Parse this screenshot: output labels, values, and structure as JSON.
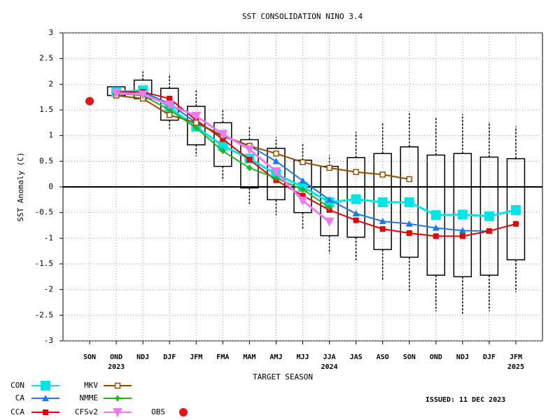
{
  "chart_data": {
    "type": "line",
    "title": "SST CONSOLIDATION NINO 3.4",
    "y_label": "SST Anomaly (C)",
    "x_label": "TARGET SEASON",
    "annotation": "ISSUED: 11 DEC 2023",
    "categories": [
      "SON",
      "OND",
      "NDJ",
      "DJF",
      "JFM",
      "FMA",
      "MAM",
      "AMJ",
      "MJJ",
      "JJA",
      "JAS",
      "ASO",
      "SON",
      "OND",
      "NDJ",
      "DJF",
      "JFM"
    ],
    "year_labels": [
      null,
      "2023",
      null,
      null,
      null,
      null,
      null,
      null,
      null,
      "2024",
      null,
      null,
      null,
      null,
      null,
      null,
      "2025"
    ],
    "ylim": [
      -3,
      3
    ],
    "yticks": [
      3,
      2.5,
      2,
      1.5,
      1,
      0.5,
      0,
      -0.5,
      -1,
      -1.5,
      -2,
      -2.5,
      -3
    ],
    "grid": true,
    "boxes": {
      "low": [
        null,
        1.78,
        1.72,
        1.3,
        0.82,
        0.4,
        -0.02,
        -0.25,
        -0.5,
        -0.95,
        -0.98,
        -1.22,
        -1.37,
        -1.72,
        -1.75,
        -1.72,
        -1.42
      ],
      "high": [
        null,
        1.95,
        2.08,
        1.92,
        1.57,
        1.25,
        0.92,
        0.75,
        0.52,
        0.4,
        0.57,
        0.65,
        0.78,
        0.62,
        0.65,
        0.58,
        0.55
      ],
      "min": [
        null,
        1.78,
        1.72,
        1.1,
        0.6,
        0.12,
        -0.35,
        -0.55,
        -0.82,
        -1.3,
        -1.45,
        -1.82,
        -2.05,
        -2.42,
        -2.48,
        -2.42,
        -2.05
      ],
      "max": [
        null,
        1.95,
        2.25,
        2.2,
        1.88,
        1.5,
        1.17,
        0.97,
        0.85,
        0.62,
        1.07,
        1.25,
        1.47,
        1.35,
        1.42,
        1.27,
        1.18
      ]
    },
    "series": [
      {
        "name": "CON",
        "color": "#00e5e5",
        "marker": "square-big",
        "values": [
          null,
          1.85,
          1.88,
          1.55,
          1.17,
          0.8,
          0.55,
          0.25,
          0.0,
          -0.3,
          -0.24,
          -0.3,
          -0.3,
          -0.55,
          -0.54,
          -0.57,
          -0.45
        ]
      },
      {
        "name": "CA",
        "color": "#1e78e6",
        "marker": "triangle",
        "values": [
          null,
          1.85,
          1.85,
          1.62,
          1.25,
          0.98,
          0.8,
          0.5,
          0.12,
          -0.25,
          -0.52,
          -0.67,
          -0.72,
          -0.8,
          -0.85,
          -0.86,
          null
        ]
      },
      {
        "name": "CCA",
        "color": "#e60000",
        "marker": "square",
        "values": [
          null,
          1.85,
          1.85,
          1.72,
          1.3,
          0.93,
          0.53,
          0.13,
          -0.17,
          -0.45,
          -0.65,
          -0.82,
          -0.9,
          -0.96,
          -0.96,
          -0.86,
          -0.72
        ]
      },
      {
        "name": "MKV",
        "color": "#964b00",
        "marker": "open-square",
        "values": [
          null,
          1.78,
          1.72,
          1.4,
          1.25,
          1.0,
          0.8,
          0.65,
          0.48,
          0.37,
          0.29,
          0.24,
          0.15,
          null,
          null,
          null,
          null
        ]
      },
      {
        "name": "NMME",
        "color": "#1eb41e",
        "marker": "plus",
        "values": [
          null,
          1.82,
          1.78,
          1.5,
          1.15,
          0.7,
          0.37,
          0.17,
          -0.05,
          -0.4,
          null,
          null,
          null,
          null,
          null,
          null,
          null
        ]
      },
      {
        "name": "CFSv2",
        "color": "#f078f0",
        "marker": "down-triangle",
        "values": [
          null,
          1.83,
          1.8,
          1.6,
          1.38,
          1.03,
          0.73,
          0.3,
          -0.27,
          -0.68,
          null,
          null,
          null,
          null,
          null,
          null,
          null
        ]
      },
      {
        "name": "OBS",
        "color": "#e61414",
        "marker": "circle",
        "values": [
          1.67,
          null,
          null,
          null,
          null,
          null,
          null,
          null,
          null,
          null,
          null,
          null,
          null,
          null,
          null,
          null,
          null
        ]
      }
    ]
  }
}
